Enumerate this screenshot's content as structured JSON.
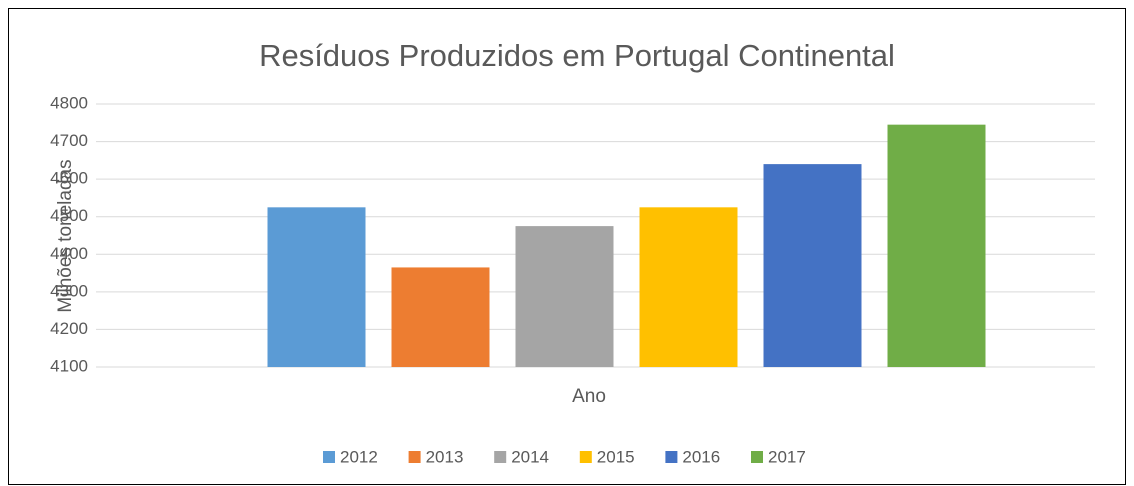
{
  "chart_data": {
    "type": "bar",
    "title": "Resíduos Produzidos em Portugal Continental",
    "y_label": "Milhões toneladas",
    "x_label": "Ano",
    "categories": [
      "Ano"
    ],
    "series": [
      {
        "name": "2012",
        "color": "#5b9bd5",
        "values": [
          4525
        ]
      },
      {
        "name": "2013",
        "color": "#ed7d31",
        "values": [
          4365
        ]
      },
      {
        "name": "2014",
        "color": "#a5a5a5",
        "values": [
          4475
        ]
      },
      {
        "name": "2015",
        "color": "#ffc000",
        "values": [
          4525
        ]
      },
      {
        "name": "2016",
        "color": "#4472c4",
        "values": [
          4640
        ]
      },
      {
        "name": "2017",
        "color": "#70ad47",
        "values": [
          4745
        ]
      }
    ],
    "ylim": [
      4100,
      4800
    ],
    "yticks": [
      4100,
      4200,
      4300,
      4400,
      4500,
      4600,
      4700,
      4800
    ],
    "grid": true,
    "legend": "bottom"
  }
}
